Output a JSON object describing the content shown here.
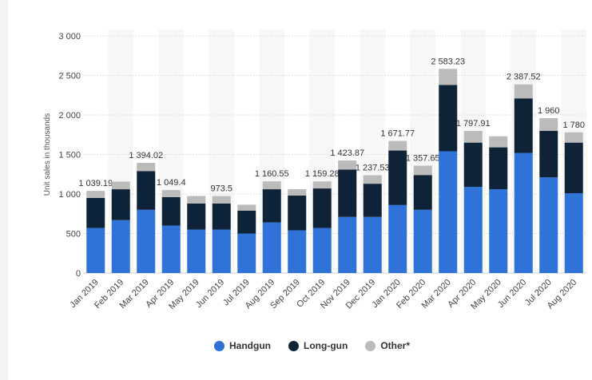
{
  "chart_data": {
    "type": "bar",
    "stacked": true,
    "title": "",
    "xlabel": "",
    "ylabel": "Unit sales in thousands",
    "ylim": [
      0,
      3000
    ],
    "yticks": [
      0,
      500,
      1000,
      1500,
      2000,
      2500,
      3000
    ],
    "ytick_labels": [
      "0",
      "500",
      "1 000",
      "1 500",
      "2 000",
      "2 500",
      "3 000"
    ],
    "categories": [
      "Jan 2019",
      "Feb 2019",
      "Mar 2019",
      "Apr 2019",
      "May 2019",
      "Jun 2019",
      "Jul 2019",
      "Aug 2019",
      "Sep 2019",
      "Oct 2019",
      "Nov 2019",
      "Dec 2019",
      "Jan 2020",
      "Feb 2020",
      "Mar 2020",
      "Apr 2020",
      "May 2020",
      "Jun 2020",
      "Jul 2020",
      "Aug 2020"
    ],
    "series": [
      {
        "name": "Handgun",
        "color": "#2f73d8",
        "values": [
          570,
          670,
          800,
          600,
          550,
          550,
          500,
          640,
          540,
          570,
          710,
          710,
          860,
          800,
          1540,
          1090,
          1060,
          1520,
          1210,
          1010
        ]
      },
      {
        "name": "Long-gun",
        "color": "#0e2338",
        "values": [
          380,
          390,
          490,
          360,
          330,
          330,
          290,
          420,
          440,
          500,
          600,
          420,
          690,
          440,
          840,
          560,
          530,
          690,
          590,
          640
        ]
      },
      {
        "name": "Other*",
        "color": "#bbbbbb",
        "values": [
          89.19,
          97,
          104.02,
          89.4,
          95,
          93.5,
          74,
          100.55,
          80,
          89.28,
          113.87,
          107.53,
          121.77,
          117.65,
          203.23,
          147.91,
          140,
          177.52,
          160,
          130
        ]
      }
    ],
    "totals": [
      1039.19,
      null,
      1394.02,
      1049.4,
      null,
      973.5,
      null,
      1160.55,
      null,
      1159.28,
      1423.87,
      1237.53,
      1671.77,
      1357.65,
      2583.23,
      1797.91,
      null,
      2387.52,
      1960,
      1780
    ],
    "total_labels": [
      "1 039.19",
      "",
      "1 394.02",
      "1 049.4",
      "",
      "973.5",
      "",
      "1 160.55",
      "",
      "1 159.28",
      "1 423.87",
      "1 237.53",
      "1 671.77",
      "1 357.65",
      "2 583.23",
      "1 797.91",
      "",
      "2 387.52",
      "1 960",
      "1 780"
    ],
    "legend_position": "bottom-center",
    "grid": true
  },
  "legend": {
    "items": [
      {
        "label": "Handgun",
        "color": "#2f73d8"
      },
      {
        "label": "Long-gun",
        "color": "#0e2338"
      },
      {
        "label": "Other*",
        "color": "#bbbbbb"
      }
    ]
  }
}
